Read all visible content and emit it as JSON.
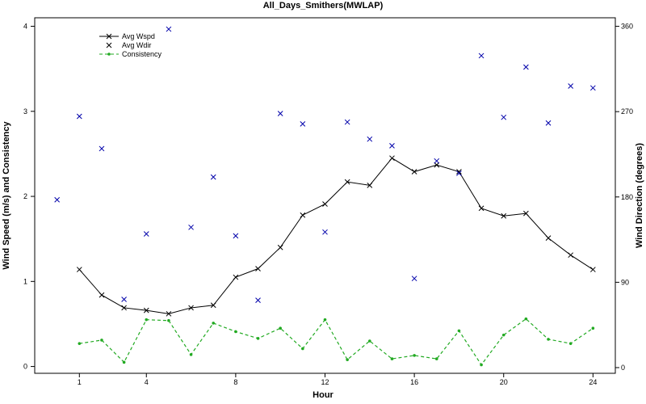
{
  "chart_data": {
    "type": "line",
    "title": "All_Days_Smithers(MWLAP)",
    "xlabel": "Hour",
    "ylabel_left": "Wind Speed (m/s) and Consistency",
    "ylabel_right": "Wind Direction (degrees)",
    "xlim": [
      -1,
      25
    ],
    "ylim_left": [
      -0.08,
      4.1
    ],
    "ylim_right": [
      -6,
      369
    ],
    "x_ticks": [
      1,
      4,
      8,
      12,
      16,
      20,
      24
    ],
    "y_ticks_left": [
      0,
      1,
      2,
      3,
      4
    ],
    "y_ticks_right": [
      0,
      90,
      180,
      270,
      360
    ],
    "legend_position": "top-left",
    "colors": {
      "wspd": "#000000",
      "wdir": "#0000aa",
      "consistency": "#22aa22"
    },
    "series": [
      {
        "name": "Avg Wspd",
        "axis": "left",
        "style": "line-cross",
        "x": [
          1,
          2,
          3,
          4,
          5,
          6,
          7,
          8,
          9,
          10,
          11,
          12,
          13,
          14,
          15,
          16,
          17,
          18,
          19,
          20,
          21,
          22,
          23,
          24
        ],
        "values": [
          1.14,
          0.84,
          0.69,
          0.66,
          0.62,
          0.69,
          0.72,
          1.05,
          1.15,
          1.4,
          1.78,
          1.91,
          2.17,
          2.13,
          2.45,
          2.29,
          2.37,
          2.29,
          1.86,
          1.77,
          1.8,
          1.51,
          1.31,
          1.14
        ]
      },
      {
        "name": "Avg Wdir",
        "axis": "right",
        "style": "cross",
        "x": [
          0,
          1,
          2,
          3,
          4,
          5,
          6,
          7,
          8,
          9,
          10,
          11,
          12,
          13,
          14,
          15,
          16,
          17,
          18,
          19,
          20,
          21,
          22,
          23,
          24
        ],
        "values": [
          177,
          265,
          231,
          72,
          141,
          357,
          148,
          201,
          139,
          71,
          268,
          257,
          143,
          259,
          241,
          234,
          94,
          218,
          205,
          329,
          264,
          317,
          258,
          297,
          295
        ]
      },
      {
        "name": "Consistency",
        "axis": "left",
        "style": "dashed-dot",
        "x": [
          1,
          2,
          3,
          4,
          5,
          6,
          7,
          8,
          9,
          10,
          11,
          12,
          13,
          14,
          15,
          16,
          17,
          18,
          19,
          20,
          21,
          22,
          23,
          24
        ],
        "values": [
          0.27,
          0.31,
          0.05,
          0.55,
          0.54,
          0.14,
          0.51,
          0.41,
          0.33,
          0.45,
          0.21,
          0.55,
          0.08,
          0.3,
          0.09,
          0.13,
          0.09,
          0.42,
          0.02,
          0.37,
          0.56,
          0.32,
          0.27,
          0.45
        ]
      }
    ]
  }
}
